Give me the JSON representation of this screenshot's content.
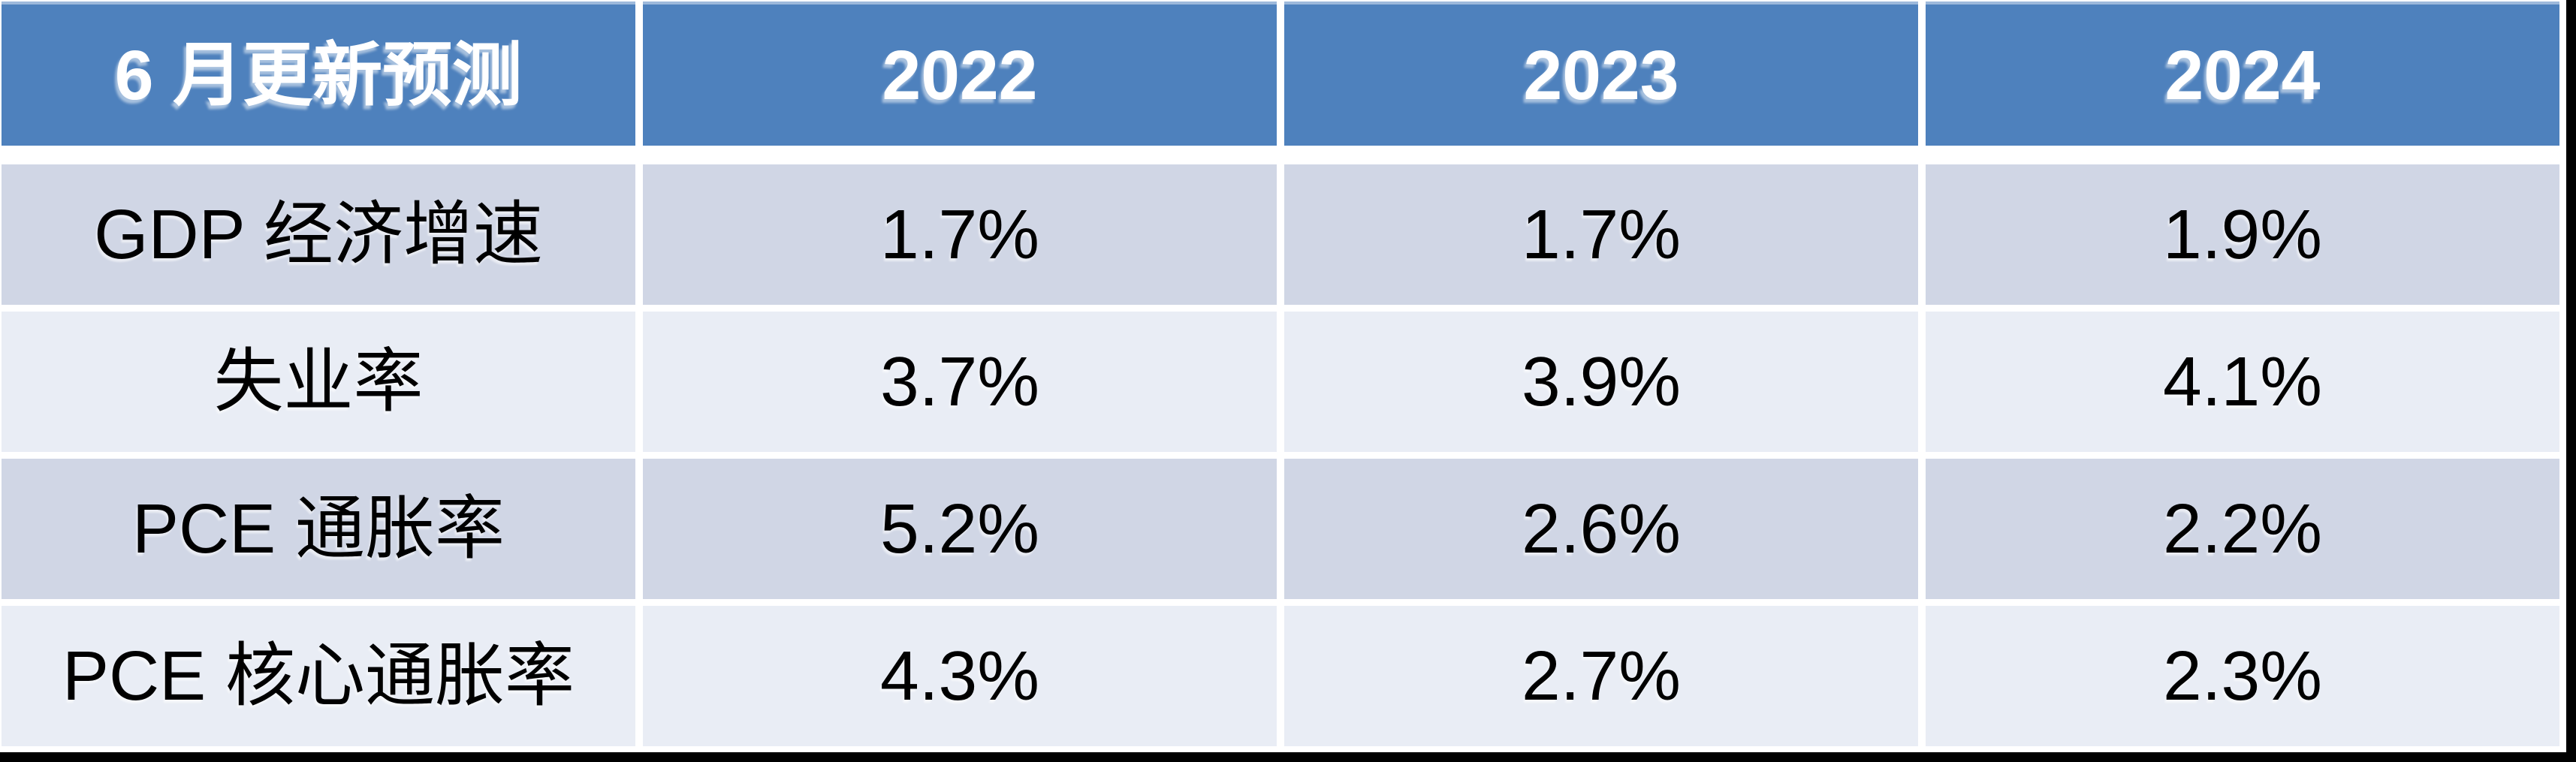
{
  "table": {
    "header": {
      "label": "6 月更新预测",
      "years": [
        "2022",
        "2023",
        "2024"
      ]
    },
    "rows": [
      {
        "label": "GDP 经济增速",
        "values": [
          "1.7%",
          "1.7%",
          "1.9%"
        ]
      },
      {
        "label": "失业率",
        "values": [
          "3.7%",
          "3.9%",
          "4.1%"
        ]
      },
      {
        "label": "PCE 通胀率",
        "values": [
          "5.2%",
          "2.6%",
          "2.2%"
        ]
      },
      {
        "label": "PCE 核心通胀率",
        "values": [
          "4.3%",
          "2.7%",
          "2.3%"
        ]
      }
    ],
    "colors": {
      "header_bg": "#4E81BD",
      "header_text": "#FFFFFF",
      "band_dark": "#D0D6E5",
      "band_light": "#E9EDF5",
      "body_text": "#000000",
      "cell_gap": "#FFFFFF",
      "slide_edge": "#000000"
    }
  },
  "chart_data": {
    "type": "table",
    "title": "6 月更新预测",
    "columns": [
      "6 月更新预测",
      "2022",
      "2023",
      "2024"
    ],
    "rows": [
      [
        "GDP 经济增速",
        "1.7%",
        "1.7%",
        "1.9%"
      ],
      [
        "失业率",
        "3.7%",
        "3.9%",
        "4.1%"
      ],
      [
        "PCE 通胀率",
        "5.2%",
        "2.6%",
        "2.2%"
      ],
      [
        "PCE 核心通胀率",
        "4.3%",
        "2.7%",
        "2.3%"
      ]
    ]
  }
}
